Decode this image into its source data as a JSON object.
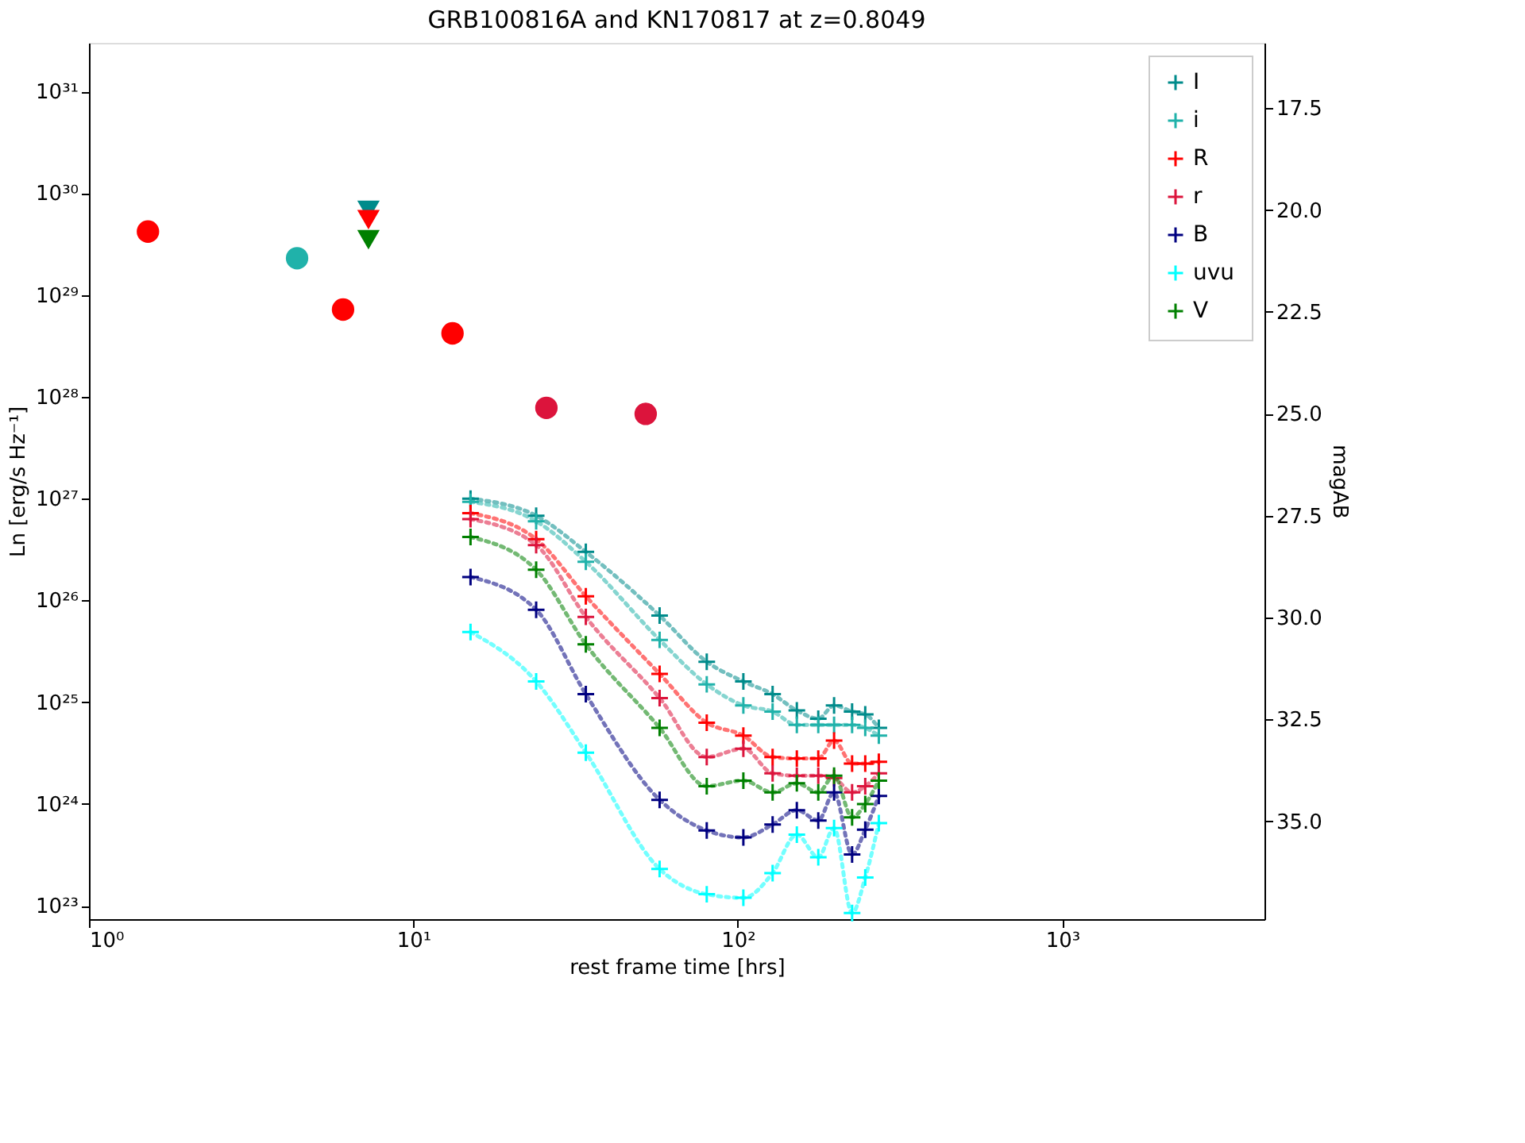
{
  "chart_data": {
    "type": "line",
    "title": "GRB100816A and KN170817 at z=0.8049",
    "xlabel": "rest frame time [hrs]",
    "ylabel": "Ln [erg/s Hz⁻¹]",
    "y2label": "magAB",
    "log": "xy",
    "legend": "top right",
    "xlim": [
      1,
      4200
    ],
    "ylim": [
      7.4e+22,
      3e+31
    ],
    "y2lim": [
      37.4,
      15.9
    ],
    "xticks": [
      {
        "value": 1,
        "label": "10⁰"
      },
      {
        "value": 10,
        "label": "10¹"
      },
      {
        "value": 100,
        "label": "10²"
      },
      {
        "value": 1000,
        "label": "10³"
      }
    ],
    "yticks": [
      {
        "value": 1e+23,
        "label": "10²³"
      },
      {
        "value": 1e+24,
        "label": "10²⁴"
      },
      {
        "value": 1e+25,
        "label": "10²⁵"
      },
      {
        "value": 1e+26,
        "label": "10²⁶"
      },
      {
        "value": 1e+27,
        "label": "10²⁷"
      },
      {
        "value": 1e+28,
        "label": "10²⁸"
      },
      {
        "value": 1e+29,
        "label": "10²⁹"
      },
      {
        "value": 1e+30,
        "label": "10³⁰"
      },
      {
        "value": 1e+31,
        "label": "10³¹"
      }
    ],
    "y2ticks": [
      {
        "value": 17.5,
        "label": "17.5"
      },
      {
        "value": 20,
        "label": "20.0"
      },
      {
        "value": 22.5,
        "label": "22.5"
      },
      {
        "value": 25,
        "label": "25.0"
      },
      {
        "value": 27.5,
        "label": "27.5"
      },
      {
        "value": 30,
        "label": "30.0"
      },
      {
        "value": 32.5,
        "label": "32.5"
      },
      {
        "value": 35,
        "label": "35.0"
      }
    ],
    "series": [
      {
        "name": "I",
        "marker": "cross",
        "line_style": "dotted",
        "color": "#008b8b",
        "x": [
          15.0,
          23.9,
          34.0,
          57.4,
          80.2,
          104,
          128,
          152,
          177,
          198,
          225,
          247,
          272
        ],
        "values": [
          1e+27,
          6.8e+26,
          3e+26,
          7.1e+25,
          2.5e+25,
          1.6e+25,
          1.2e+25,
          8.3e+24,
          6.9e+24,
          9.3e+24,
          8.1e+24,
          7.6e+24,
          5.6e+24
        ]
      },
      {
        "name": "i",
        "marker": "cross",
        "line_style": "dotted",
        "color": "#20b2aa",
        "x": [
          15.0,
          23.9,
          34.0,
          57.4,
          80.2,
          104,
          128,
          152,
          177,
          198,
          225,
          247,
          272
        ],
        "values": [
          9.3e+26,
          6e+26,
          2.4e+26,
          4.1e+25,
          1.5e+25,
          9.3e+24,
          8.1e+24,
          6e+24,
          6e+24,
          6e+24,
          6e+24,
          5.6e+24,
          4.7e+24
        ]
      },
      {
        "name": "R",
        "marker": "cross",
        "line_style": "dotted",
        "color": "#ff0000",
        "x": [
          15.0,
          23.9,
          34.0,
          57.4,
          80.2,
          104,
          128,
          152,
          177,
          198,
          225,
          247,
          272
        ],
        "values": [
          7.2e+26,
          4e+26,
          1.1e+26,
          1.9e+25,
          6.3e+24,
          4.7e+24,
          2.9e+24,
          2.8e+24,
          2.8e+24,
          4.2e+24,
          2.5e+24,
          2.5e+24,
          2.6e+24
        ]
      },
      {
        "name": "r",
        "marker": "cross",
        "line_style": "dotted",
        "color": "#dc143c",
        "x": [
          15.0,
          23.9,
          34.0,
          57.4,
          80.2,
          104,
          128,
          152,
          177,
          198,
          225,
          247,
          272
        ],
        "values": [
          6.3e+26,
          3.5e+26,
          6.9e+25,
          1.1e+25,
          2.9e+24,
          3.5e+24,
          2e+24,
          1.9e+24,
          1.9e+24,
          1.8e+24,
          1.3e+24,
          1.5e+24,
          2e+24
        ]
      },
      {
        "name": "B",
        "marker": "cross",
        "line_style": "dotted",
        "color": "#000080",
        "x": [
          15.0,
          23.9,
          34.0,
          57.4,
          80.2,
          104,
          128,
          152,
          177,
          198,
          225,
          247,
          272
        ],
        "values": [
          1.7e+26,
          8.1e+25,
          1.2e+25,
          1.1e+24,
          5.5e+23,
          4.7e+23,
          6.3e+23,
          8.7e+23,
          6.9e+23,
          1.3e+24,
          3.2e+23,
          5.6e+23,
          1.2e+24
        ]
      },
      {
        "name": "uvu",
        "marker": "cross",
        "line_style": "dotted",
        "color": "#00ffff",
        "x": [
          15.0,
          23.9,
          34.0,
          57.4,
          80.2,
          104,
          128,
          152,
          177,
          198,
          225,
          247,
          272
        ],
        "values": [
          4.9e+25,
          1.6e+25,
          3.2e+24,
          2.3e+23,
          1.3e+23,
          1.2e+23,
          2.1e+23,
          5e+23,
          3e+23,
          5.8e+23,
          8.5e+22,
          1.9e+23,
          6.5e+23
        ]
      },
      {
        "name": "V",
        "marker": "cross",
        "line_style": "dotted",
        "color": "#008000",
        "x": [
          15.0,
          23.9,
          34.0,
          57.4,
          80.2,
          104,
          128,
          152,
          177,
          198,
          225,
          247,
          272
        ],
        "values": [
          4.2e+26,
          2e+26,
          3.7e+25,
          5.6e+24,
          1.5e+24,
          1.7e+24,
          1.3e+24,
          1.6e+24,
          1.3e+24,
          1.9e+24,
          7.4e+23,
          1e+24,
          1.7e+24
        ]
      },
      {
        "type": "scatter",
        "marker": "circle",
        "color": "#ff0000",
        "x": [
          1.52,
          6.07,
          13.2
        ],
        "values": [
          4.2e+29,
          7.2e+28,
          4.2e+28
        ]
      },
      {
        "type": "scatter",
        "marker": "circle",
        "color": "#20b2aa",
        "x": [
          4.38
        ],
        "values": [
          2.3e+29
        ]
      },
      {
        "type": "scatter",
        "marker": "circle",
        "color": "#dc143c",
        "x": [
          25.7,
          52
        ],
        "values": [
          7.8e+27,
          6.8e+27
        ]
      },
      {
        "type": "scatter",
        "marker": "triangle",
        "color": "#008b8b",
        "x": [
          7.27
        ],
        "values": [
          6.8e+29
        ]
      },
      {
        "type": "scatter",
        "marker": "triangle",
        "color": "#ff0000",
        "x": [
          7.27
        ],
        "values": [
          5.5e+29
        ]
      },
      {
        "type": "scatter",
        "marker": "triangle",
        "color": "#008000",
        "x": [
          7.27
        ],
        "values": [
          3.5e+29
        ]
      }
    ]
  }
}
